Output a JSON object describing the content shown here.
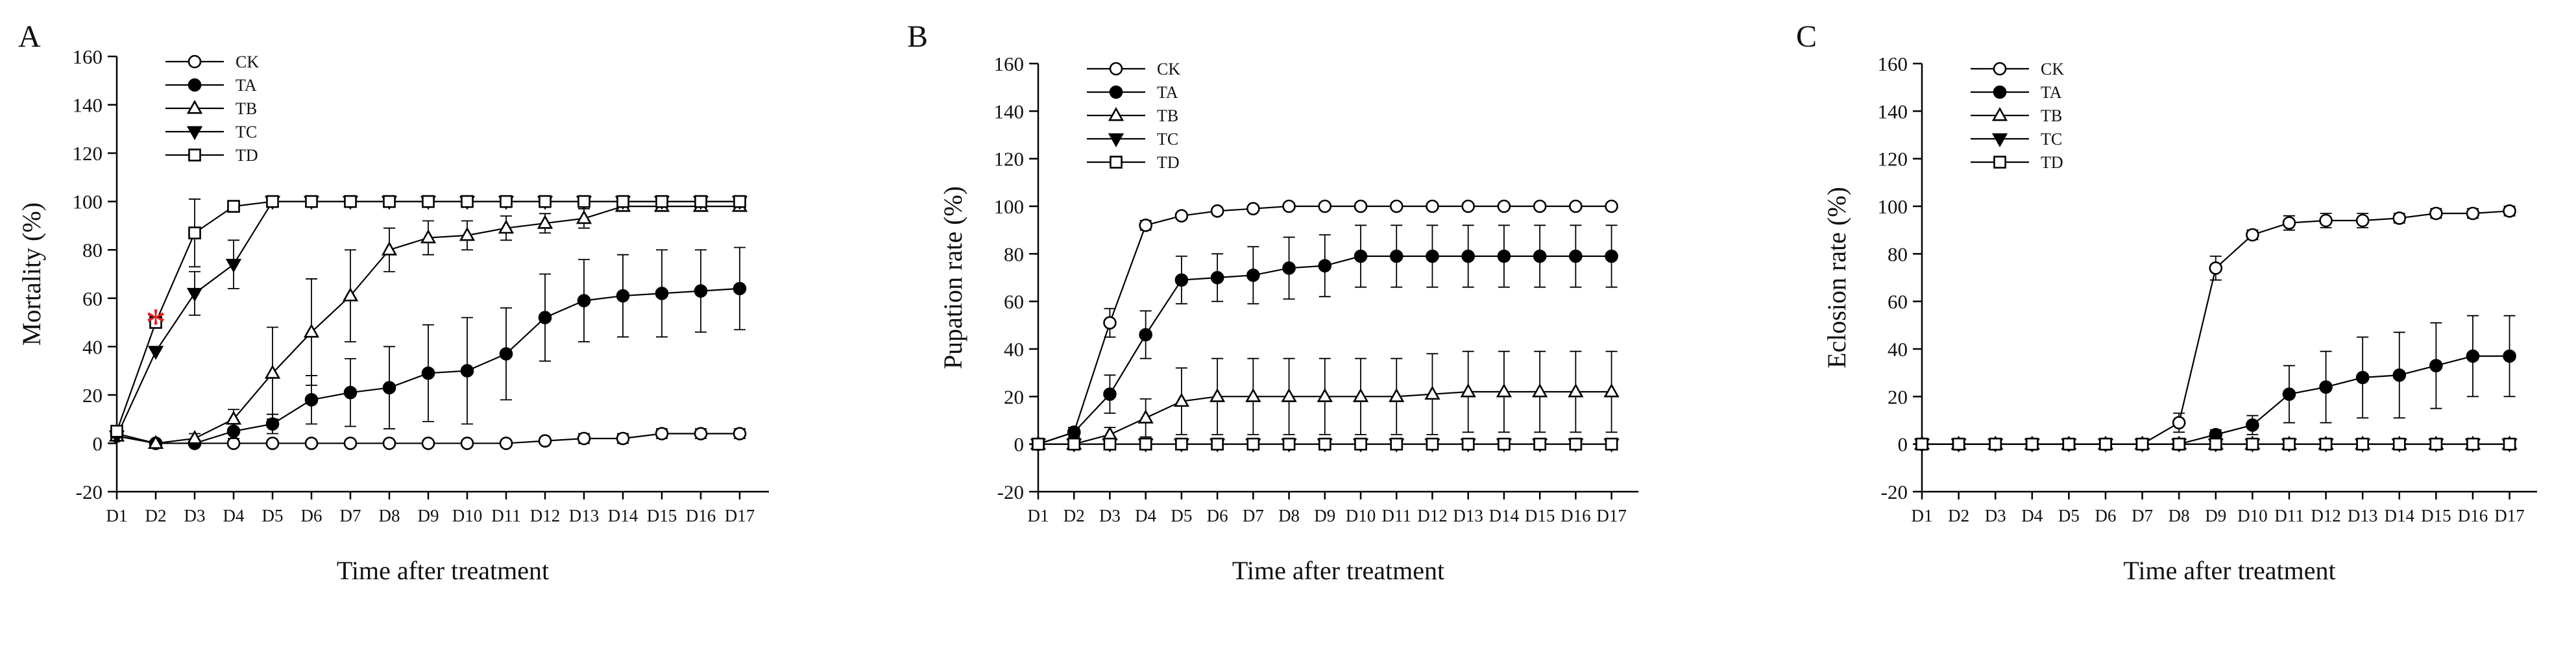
{
  "chart_data": [
    {
      "panel_label": "A",
      "type": "line",
      "title": "",
      "xlabel": "Time after treatment",
      "ylabel": "Mortality (%)",
      "ylim": [
        -20,
        160
      ],
      "yticks": [
        -20,
        0,
        20,
        40,
        60,
        80,
        100,
        120,
        140,
        160
      ],
      "categories": [
        "D1",
        "D2",
        "D3",
        "D4",
        "D5",
        "D6",
        "D7",
        "D8",
        "D9",
        "D10",
        "D11",
        "D12",
        "D13",
        "D14",
        "D15",
        "D16",
        "D17"
      ],
      "legend_position": "top-left",
      "annotation": {
        "text": "*",
        "color": "#e02020",
        "category": "D2",
        "y": 50
      },
      "series": [
        {
          "name": "CK",
          "marker": "circle-open",
          "values": [
            4,
            0,
            0,
            0,
            0,
            0,
            0,
            0,
            0,
            0,
            0,
            1,
            2,
            2,
            4,
            4,
            4
          ],
          "errors": [
            0,
            0,
            0,
            0,
            0,
            0,
            0,
            0,
            0,
            0,
            0,
            1,
            2,
            2,
            2,
            2,
            2
          ]
        },
        {
          "name": "TA",
          "marker": "circle-filled",
          "values": [
            3,
            0,
            0,
            5,
            8,
            18,
            21,
            23,
            29,
            30,
            37,
            52,
            59,
            61,
            62,
            63,
            64
          ],
          "errors": [
            0,
            0,
            0,
            3,
            4,
            10,
            14,
            17,
            20,
            22,
            19,
            18,
            17,
            17,
            18,
            17,
            17
          ]
        },
        {
          "name": "TB",
          "marker": "triangle-up-open",
          "values": [
            3,
            0,
            2,
            10,
            29,
            46,
            61,
            80,
            85,
            86,
            89,
            91,
            93,
            98,
            98,
            98,
            98
          ],
          "errors": [
            0,
            0,
            2,
            4,
            19,
            22,
            19,
            9,
            7,
            6,
            5,
            4,
            4,
            2,
            2,
            2,
            2
          ]
        },
        {
          "name": "TC",
          "marker": "triangle-down-filled",
          "values": [
            3,
            38,
            62,
            74,
            100,
            100,
            100,
            100,
            100,
            100,
            100,
            100,
            100,
            100,
            100,
            100,
            100
          ],
          "errors": [
            0,
            0,
            9,
            10,
            0,
            0,
            0,
            0,
            0,
            0,
            0,
            0,
            0,
            0,
            0,
            0,
            0
          ]
        },
        {
          "name": "TD",
          "marker": "square-open",
          "values": [
            5,
            50,
            87,
            98,
            100,
            100,
            100,
            100,
            100,
            100,
            100,
            100,
            100,
            100,
            100,
            100,
            100
          ],
          "errors": [
            0,
            0,
            14,
            2,
            0,
            0,
            0,
            0,
            0,
            0,
            0,
            0,
            0,
            0,
            0,
            0,
            0
          ]
        }
      ]
    },
    {
      "panel_label": "B",
      "type": "line",
      "title": "",
      "xlabel": "Time after treatment",
      "ylabel": "Pupation rate (%)",
      "ylim": [
        -20,
        160
      ],
      "yticks": [
        -20,
        0,
        20,
        40,
        60,
        80,
        100,
        120,
        140,
        160
      ],
      "categories": [
        "D1",
        "D2",
        "D3",
        "D4",
        "D5",
        "D6",
        "D7",
        "D8",
        "D9",
        "D10",
        "D11",
        "D12",
        "D13",
        "D14",
        "D15",
        "D16",
        "D17"
      ],
      "legend_position": "top-left",
      "series": [
        {
          "name": "CK",
          "marker": "circle-open",
          "values": [
            0,
            5,
            51,
            92,
            96,
            98,
            99,
            100,
            100,
            100,
            100,
            100,
            100,
            100,
            100,
            100,
            100
          ],
          "errors": [
            0,
            2,
            6,
            2,
            1,
            1,
            1,
            0,
            0,
            0,
            0,
            0,
            0,
            0,
            0,
            0,
            0
          ]
        },
        {
          "name": "TA",
          "marker": "circle-filled",
          "values": [
            0,
            5,
            21,
            46,
            69,
            70,
            71,
            74,
            75,
            79,
            79,
            79,
            79,
            79,
            79,
            79,
            79
          ],
          "errors": [
            0,
            2,
            8,
            10,
            10,
            10,
            12,
            13,
            13,
            13,
            13,
            13,
            13,
            13,
            13,
            13,
            13
          ]
        },
        {
          "name": "TB",
          "marker": "triangle-up-open",
          "values": [
            0,
            0,
            4,
            11,
            18,
            20,
            20,
            20,
            20,
            20,
            20,
            21,
            22,
            22,
            22,
            22,
            22
          ],
          "errors": [
            0,
            0,
            3,
            8,
            14,
            16,
            16,
            16,
            16,
            16,
            16,
            17,
            17,
            17,
            17,
            17,
            17
          ]
        },
        {
          "name": "TC",
          "marker": "triangle-down-filled",
          "values": [
            0,
            0,
            0,
            0,
            0,
            0,
            0,
            0,
            0,
            0,
            0,
            0,
            0,
            0,
            0,
            0,
            0
          ],
          "errors": [
            0,
            0,
            0,
            0,
            0,
            0,
            0,
            0,
            0,
            0,
            0,
            0,
            0,
            0,
            0,
            0,
            0
          ]
        },
        {
          "name": "TD",
          "marker": "square-open",
          "values": [
            0,
            0,
            0,
            0,
            0,
            0,
            0,
            0,
            0,
            0,
            0,
            0,
            0,
            0,
            0,
            0,
            0
          ],
          "errors": [
            0,
            0,
            0,
            0,
            0,
            0,
            0,
            0,
            0,
            0,
            0,
            0,
            0,
            0,
            0,
            0,
            0
          ]
        }
      ]
    },
    {
      "panel_label": "C",
      "type": "line",
      "title": "",
      "xlabel": "Time after treatment",
      "ylabel": "Eclosion rate (%)",
      "ylim": [
        -20,
        160
      ],
      "yticks": [
        -20,
        0,
        20,
        40,
        60,
        80,
        100,
        120,
        140,
        160
      ],
      "categories": [
        "D1",
        "D2",
        "D3",
        "D4",
        "D5",
        "D6",
        "D7",
        "D8",
        "D9",
        "D10",
        "D11",
        "D12",
        "D13",
        "D14",
        "D15",
        "D16",
        "D17"
      ],
      "legend_position": "top-left",
      "series": [
        {
          "name": "CK",
          "marker": "circle-open",
          "values": [
            0,
            0,
            0,
            0,
            0,
            0,
            0,
            9,
            74,
            88,
            93,
            94,
            94,
            95,
            97,
            97,
            98
          ],
          "errors": [
            0,
            0,
            0,
            0,
            0,
            0,
            0,
            4,
            5,
            2,
            3,
            3,
            3,
            2,
            2,
            2,
            2
          ]
        },
        {
          "name": "TA",
          "marker": "circle-filled",
          "values": [
            0,
            0,
            0,
            0,
            0,
            0,
            0,
            0,
            4,
            8,
            21,
            24,
            28,
            29,
            33,
            37,
            37
          ],
          "errors": [
            0,
            0,
            0,
            0,
            0,
            0,
            0,
            0,
            2,
            4,
            12,
            15,
            17,
            18,
            18,
            17,
            17
          ]
        },
        {
          "name": "TB",
          "marker": "triangle-up-open",
          "values": [
            0,
            0,
            0,
            0,
            0,
            0,
            0,
            0,
            0,
            0,
            0,
            0,
            0,
            0,
            0,
            0,
            0
          ],
          "errors": [
            0,
            0,
            0,
            0,
            0,
            0,
            0,
            0,
            0,
            0,
            0,
            0,
            0,
            0,
            0,
            0,
            0
          ]
        },
        {
          "name": "TC",
          "marker": "triangle-down-filled",
          "values": [
            0,
            0,
            0,
            0,
            0,
            0,
            0,
            0,
            0,
            0,
            0,
            0,
            0,
            0,
            0,
            0,
            0
          ],
          "errors": [
            0,
            0,
            0,
            0,
            0,
            0,
            0,
            0,
            0,
            0,
            0,
            0,
            0,
            0,
            0,
            0,
            0
          ]
        },
        {
          "name": "TD",
          "marker": "square-open",
          "values": [
            0,
            0,
            0,
            0,
            0,
            0,
            0,
            0,
            0,
            0,
            0,
            0,
            0,
            0,
            0,
            0,
            0
          ],
          "errors": [
            0,
            0,
            0,
            0,
            0,
            0,
            0,
            0,
            0,
            0,
            0,
            0,
            0,
            0,
            0,
            0,
            0
          ]
        }
      ]
    }
  ]
}
